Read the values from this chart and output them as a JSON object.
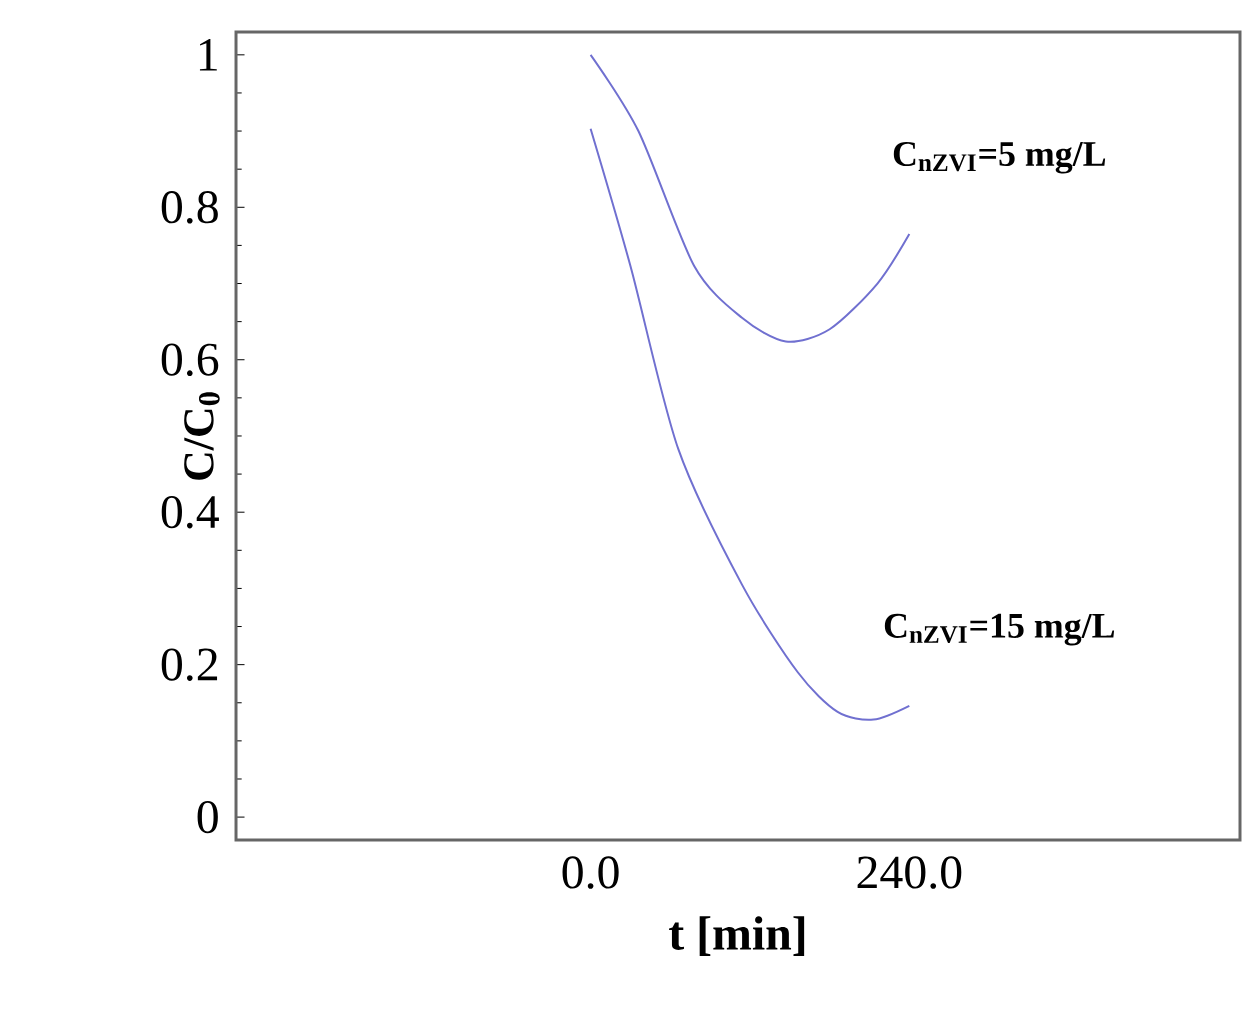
{
  "chart_data": {
    "type": "line",
    "xlabel": "t [min]",
    "ylabel": "C/C$_{0}$",
    "xlim": [
      -267,
      489
    ],
    "ylim": [
      -0.03,
      1.03
    ],
    "xticks": [
      {
        "value": 0,
        "label": "0.0"
      },
      {
        "value": 240,
        "label": "240.0"
      }
    ],
    "yticks": [
      0,
      0.2,
      0.4,
      0.6,
      0.8,
      1
    ],
    "grid": false,
    "legend": false,
    "marker": "none",
    "line_style": "solid",
    "series": [
      {
        "name": "C$_{nZVI}$=5 mg/L",
        "color": "#7070d0",
        "x": [
          0,
          36,
          78,
          114,
          147,
          180,
          216,
          240
        ],
        "values": [
          1.0,
          0.9,
          0.723,
          0.655,
          0.624,
          0.64,
          0.7,
          0.765
        ]
      },
      {
        "name": "C$_{nZVI}$=15 mg/L",
        "color": "#7070d0",
        "x": [
          0,
          30,
          66,
          114,
          156,
          186,
          213,
          240
        ],
        "values": [
          0.903,
          0.723,
          0.483,
          0.305,
          0.19,
          0.138,
          0.128,
          0.146
        ]
      }
    ]
  }
}
